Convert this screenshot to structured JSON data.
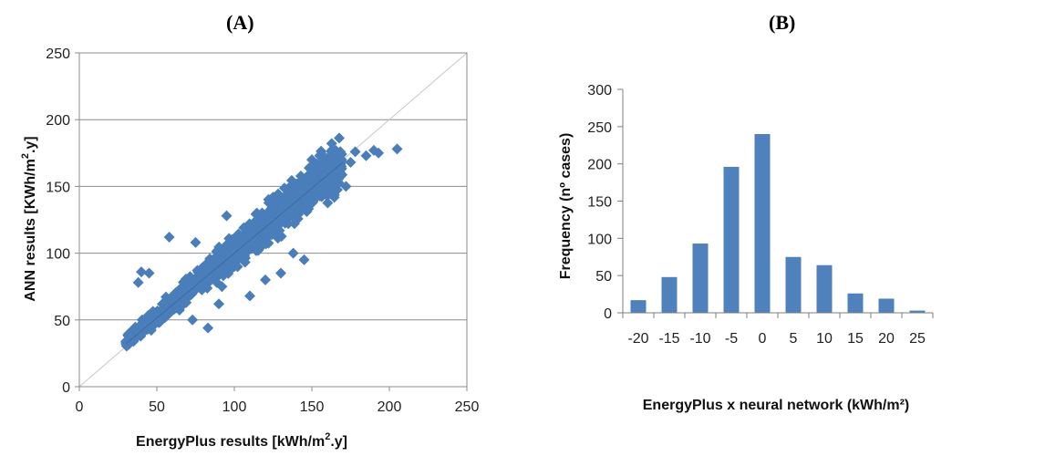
{
  "panel_a_label": "(A)",
  "panel_b_label": "(B)",
  "colors": {
    "marker": "#4A7EBB",
    "bar": "#4F81BD",
    "grid": "#8c8c8c",
    "diagonal": "#c8c8c8"
  },
  "chart_data": [
    {
      "type": "scatter",
      "xlabel_main": "EnergyPlus results [kWh/m",
      "xlabel_sup": "2",
      "xlabel_end": ".y]",
      "ylabel_main": "ANN results [KWh/m",
      "ylabel_sup": "2",
      "ylabel_end": ".y]",
      "xlim": [
        0,
        250
      ],
      "ylim": [
        0,
        250
      ],
      "xticks": [
        "0",
        "50",
        "100",
        "150",
        "200",
        "250"
      ],
      "yticks": [
        "0",
        "50",
        "100",
        "150",
        "200",
        "250"
      ],
      "grid": "horizontal",
      "reference_line": "y = x",
      "cloud": {
        "x_min": 30,
        "x_max": 170,
        "band_center_slope": 0.96,
        "band_intercept": 5,
        "approx_points": 1100
      },
      "outliers": [
        [
          35,
          34
        ],
        [
          40,
          86
        ],
        [
          38,
          78
        ],
        [
          45,
          85
        ],
        [
          58,
          112
        ],
        [
          75,
          108
        ],
        [
          83,
          44
        ],
        [
          73,
          50
        ],
        [
          90,
          62
        ],
        [
          110,
          68
        ],
        [
          95,
          128
        ],
        [
          125,
          142
        ],
        [
          150,
          170
        ],
        [
          155,
          173
        ],
        [
          165,
          172
        ],
        [
          175,
          168
        ],
        [
          185,
          173
        ],
        [
          190,
          177
        ],
        [
          193,
          175
        ],
        [
          205,
          178
        ],
        [
          178,
          176
        ],
        [
          172,
          150
        ],
        [
          160,
          145
        ],
        [
          145,
          95
        ],
        [
          138,
          100
        ],
        [
          130,
          85
        ],
        [
          120,
          80
        ],
        [
          100,
          90
        ],
        [
          92,
          75
        ]
      ]
    },
    {
      "type": "bar",
      "categories": [
        "-20",
        "-15",
        "-10",
        "-5",
        "0",
        "5",
        "10",
        "15",
        "20",
        "25"
      ],
      "values": [
        17,
        48,
        93,
        196,
        240,
        75,
        64,
        26,
        19,
        3
      ],
      "xlabel": "EnergyPlus x neural network (kWh/m²)",
      "ylabel": "Frequency  (nº cases)",
      "ylim": [
        0,
        300
      ],
      "yticks": [
        "0",
        "50",
        "100",
        "150",
        "200",
        "250",
        "300"
      ]
    }
  ]
}
